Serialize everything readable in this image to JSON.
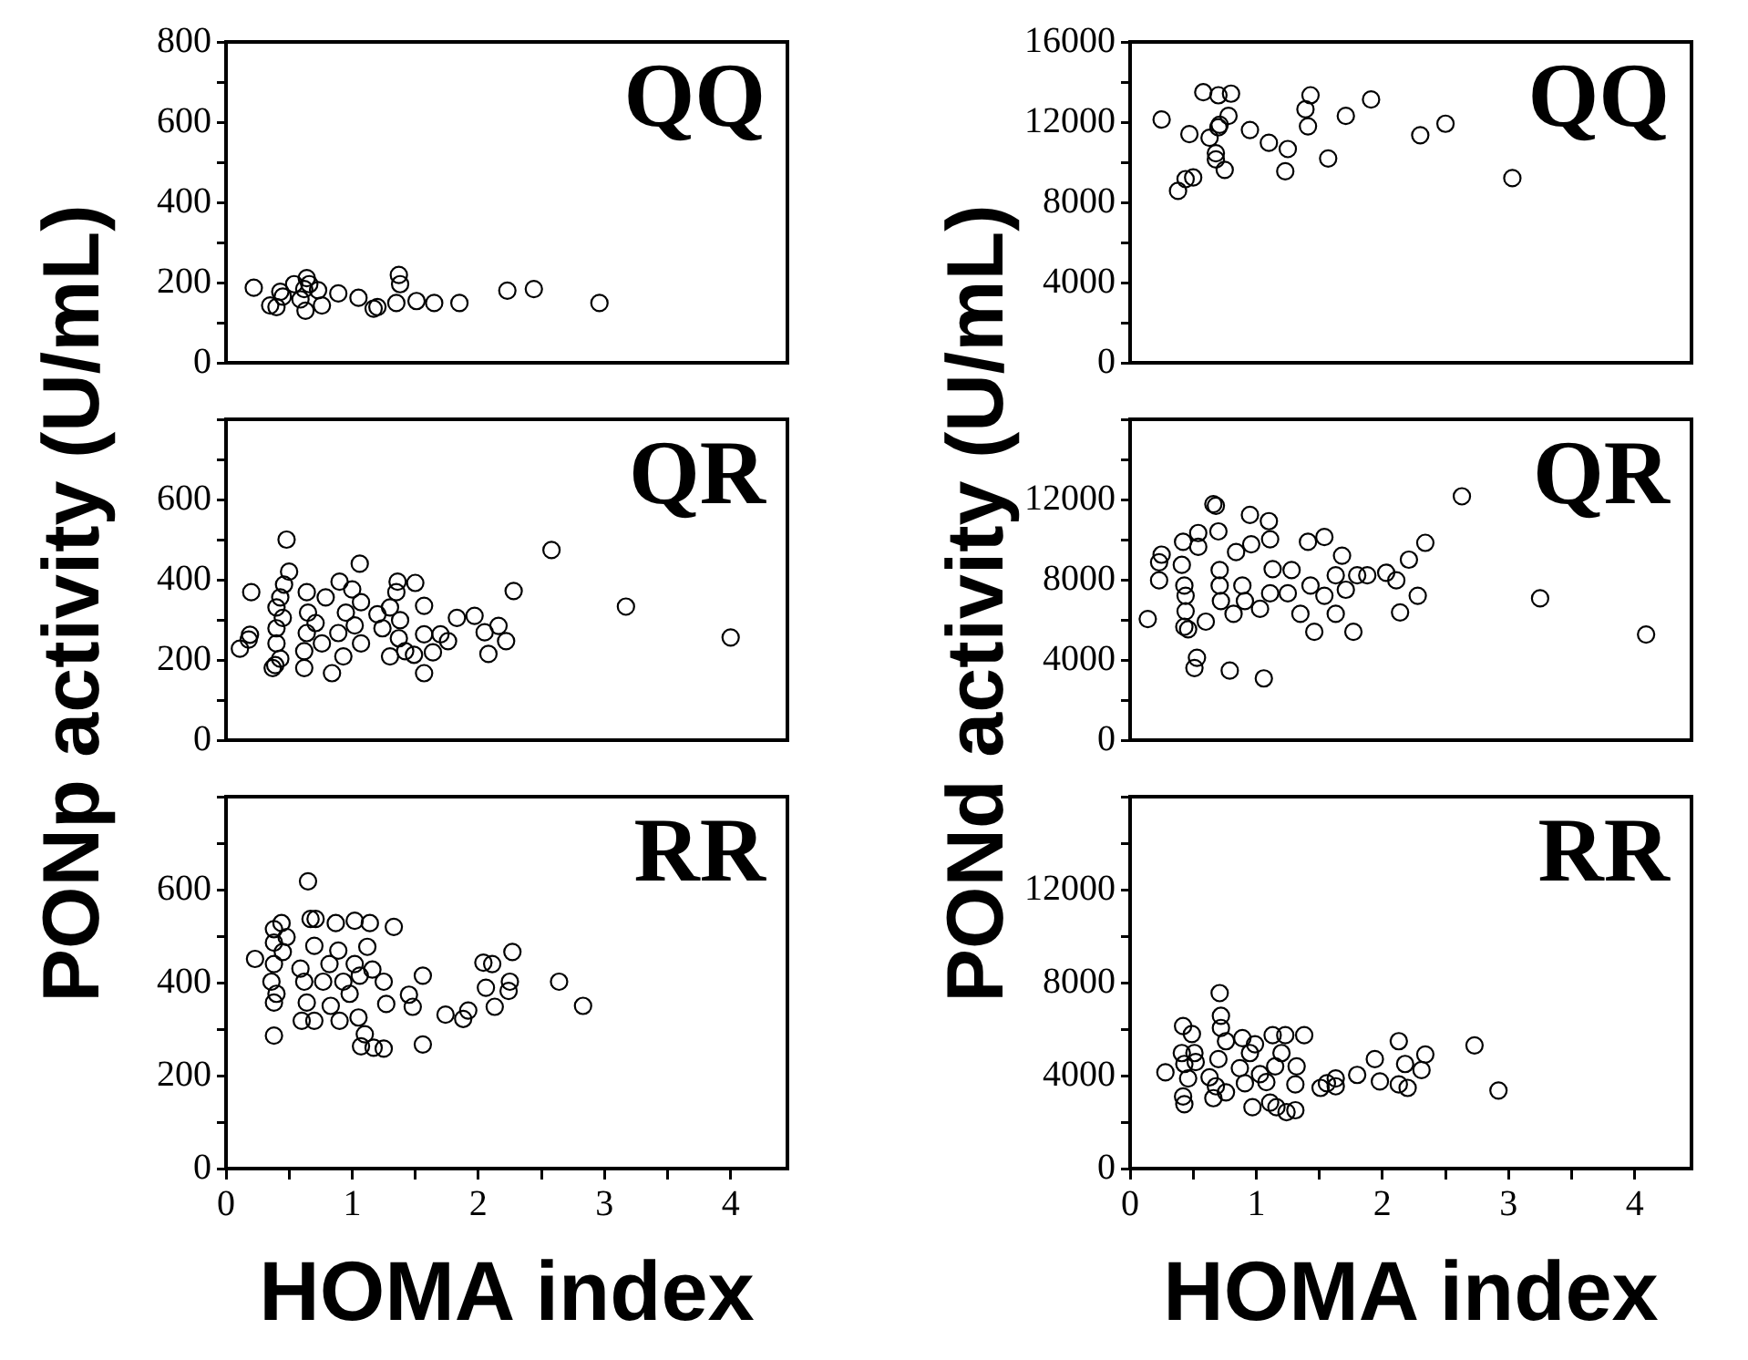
{
  "chart_data": [
    {
      "type": "scatter",
      "color": "#000000",
      "marker": "circle",
      "tick_labels": "y",
      "annotations": [
        "QQ"
      ],
      "xlim": [
        0,
        4.45
      ],
      "ylim": [
        0,
        800
      ],
      "yticks": [
        0,
        {
          "value": 100,
          "label": null
        },
        200,
        {
          "value": 300,
          "label": null
        },
        400,
        {
          "value": 500,
          "label": null
        },
        600,
        {
          "value": 700,
          "label": null
        },
        800
      ],
      "x": [
        0.22,
        0.35,
        0.4,
        0.43,
        0.45,
        0.54,
        0.59,
        0.62,
        0.64,
        0.66,
        0.63,
        0.73,
        0.76,
        0.89,
        1.05,
        1.17,
        1.2,
        1.35,
        1.37,
        1.38,
        1.51,
        1.65,
        1.85,
        2.23,
        2.44,
        2.96
      ],
      "values": [
        187,
        143,
        139,
        177,
        165,
        196,
        158,
        184,
        211,
        196,
        130,
        181,
        143,
        173,
        162,
        135,
        139,
        149,
        219,
        196,
        154,
        149,
        149,
        180,
        184,
        149
      ]
    },
    {
      "type": "scatter",
      "color": "#000000",
      "marker": "circle",
      "tick_labels": "y",
      "annotations": [
        "QQ"
      ],
      "xlim": [
        0,
        4.45
      ],
      "ylim": [
        0,
        16000
      ],
      "yticks": [
        0,
        {
          "value": 2000,
          "label": null
        },
        4000,
        {
          "value": 6000,
          "label": null
        },
        8000,
        {
          "value": 10000,
          "label": null
        },
        12000,
        {
          "value": 14000,
          "label": null
        },
        16000
      ],
      "x": [
        0.25,
        0.38,
        0.44,
        0.5,
        0.47,
        0.58,
        0.63,
        0.68,
        0.68,
        0.7,
        0.71,
        0.7,
        0.78,
        0.8,
        0.75,
        0.95,
        1.1,
        1.23,
        1.25,
        1.39,
        1.43,
        1.41,
        1.57,
        1.71,
        1.91,
        2.3,
        2.5,
        3.03
      ],
      "values": [
        12130,
        8570,
        9160,
        9240,
        11400,
        13490,
        11220,
        10450,
        10140,
        11740,
        11870,
        13340,
        12310,
        13420,
        9620,
        11610,
        10970,
        9550,
        10660,
        12640,
        13340,
        11790,
        10190,
        12310,
        13130,
        11350,
        11920,
        9210
      ]
    },
    {
      "type": "scatter",
      "color": "#000000",
      "marker": "circle",
      "tick_labels": "y",
      "annotations": [
        "QR"
      ],
      "ylabel": "PONp activity (U/mL)",
      "xlim": [
        0,
        4.45
      ],
      "ylim": [
        0,
        800
      ],
      "yticks": [
        0,
        {
          "value": 100,
          "label": null
        },
        200,
        {
          "value": 300,
          "label": null
        },
        400,
        {
          "value": 500,
          "label": null
        },
        600,
        {
          "value": 700,
          "label": null
        },
        {
          "value": 800,
          "label": null
        }
      ],
      "x": [
        0.11,
        0.19,
        0.18,
        0.2,
        0.37,
        0.39,
        0.43,
        0.4,
        0.4,
        0.4,
        0.43,
        0.46,
        0.5,
        0.48,
        0.45,
        0.62,
        0.62,
        0.64,
        0.65,
        0.64,
        0.71,
        0.76,
        0.79,
        0.84,
        0.89,
        0.9,
        0.93,
        0.95,
        1.0,
        1.02,
        1.06,
        1.07,
        1.07,
        1.2,
        1.24,
        1.3,
        1.3,
        1.35,
        1.36,
        1.37,
        1.38,
        1.42,
        1.49,
        1.5,
        1.57,
        1.57,
        1.57,
        1.64,
        1.7,
        1.76,
        1.83,
        1.97,
        2.05,
        2.08,
        2.16,
        2.22,
        2.28,
        2.58,
        3.17,
        4.0
      ],
      "values": [
        228,
        263,
        251,
        369,
        180,
        187,
        203,
        241,
        279,
        331,
        356,
        388,
        420,
        500,
        305,
        180,
        222,
        267,
        318,
        369,
        292,
        241,
        356,
        167,
        267,
        395,
        209,
        318,
        376,
        286,
        440,
        344,
        241,
        314,
        279,
        331,
        209,
        369,
        395,
        254,
        299,
        222,
        213,
        392,
        167,
        335,
        264,
        219,
        264,
        247,
        305,
        310,
        269,
        215,
        285,
        247,
        372,
        474,
        333,
        256
      ]
    },
    {
      "type": "scatter",
      "color": "#000000",
      "marker": "circle",
      "tick_labels": "y",
      "annotations": [
        "QR"
      ],
      "ylabel": "PONd activity (U/mL)",
      "xlim": [
        0,
        4.45
      ],
      "ylim": [
        0,
        16000
      ],
      "yticks": [
        0,
        {
          "value": 2000,
          "label": null
        },
        4000,
        {
          "value": 6000,
          "label": null
        },
        8000,
        {
          "value": 10000,
          "label": null
        },
        12000,
        {
          "value": 14000,
          "label": null
        },
        {
          "value": 16000,
          "label": null
        }
      ],
      "x": [
        0.14,
        0.23,
        0.23,
        0.25,
        0.42,
        0.41,
        0.43,
        0.43,
        0.46,
        0.44,
        0.44,
        0.53,
        0.51,
        0.54,
        0.54,
        0.6,
        0.66,
        0.68,
        0.7,
        0.71,
        0.71,
        0.72,
        0.79,
        0.82,
        0.84,
        0.89,
        0.91,
        0.95,
        0.96,
        1.03,
        1.06,
        1.1,
        1.11,
        1.11,
        1.13,
        1.25,
        1.28,
        1.35,
        1.41,
        1.43,
        1.46,
        1.54,
        1.54,
        1.63,
        1.63,
        1.68,
        1.71,
        1.77,
        1.8,
        1.88,
        2.03,
        2.11,
        2.14,
        2.21,
        2.28,
        2.34,
        2.63,
        3.25,
        4.09
      ],
      "values": [
        6040,
        7970,
        8870,
        9250,
        9890,
        8740,
        7710,
        5650,
        5530,
        6430,
        7200,
        4110,
        3600,
        10330,
        9640,
        5910,
        11770,
        11690,
        10410,
        8480,
        7710,
        6940,
        3470,
        6300,
        9380,
        7710,
        6940,
        11230,
        9770,
        6550,
        3080,
        10920,
        10020,
        7320,
        8530,
        7320,
        8480,
        6300,
        9890,
        7710,
        5400,
        10130,
        7200,
        8220,
        6300,
        9200,
        7500,
        5400,
        8220,
        8220,
        8350,
        7970,
        6370,
        9000,
        7200,
        9840,
        12160,
        7070,
        5270
      ]
    },
    {
      "type": "scatter",
      "color": "#000000",
      "marker": "circle",
      "annotations": [
        "RR"
      ],
      "xlabel": "HOMA index",
      "xlim": [
        0,
        4.45
      ],
      "xticks": [
        0,
        {
          "value": 0.5,
          "label": null
        },
        1,
        {
          "value": 1.5,
          "label": null
        },
        2,
        {
          "value": 2.5,
          "label": null
        },
        3,
        {
          "value": 3.5,
          "label": null
        },
        4
      ],
      "ylim": [
        0,
        800
      ],
      "yticks": [
        0,
        {
          "value": 100,
          "label": null
        },
        200,
        {
          "value": 300,
          "label": null
        },
        400,
        {
          "value": 500,
          "label": null
        },
        600,
        {
          "value": 700,
          "label": null
        },
        {
          "value": 800,
          "label": null
        }
      ],
      "x": [
        0.23,
        0.38,
        0.38,
        0.36,
        0.38,
        0.38,
        0.38,
        0.44,
        0.48,
        0.45,
        0.4,
        0.6,
        0.59,
        0.62,
        0.64,
        0.65,
        0.67,
        0.71,
        0.7,
        0.7,
        0.77,
        0.82,
        0.83,
        0.87,
        0.89,
        0.9,
        0.93,
        0.98,
        1.02,
        1.02,
        1.05,
        1.06,
        1.07,
        1.1,
        1.12,
        1.14,
        1.16,
        1.17,
        1.25,
        1.25,
        1.27,
        1.33,
        1.45,
        1.48,
        1.56,
        1.56,
        1.74,
        1.88,
        1.92,
        2.04,
        2.06,
        2.11,
        2.13,
        2.24,
        2.25,
        2.27,
        2.64,
        2.83
      ],
      "values": [
        451,
        286,
        357,
        402,
        440,
        486,
        515,
        528,
        498,
        466,
        376,
        318,
        430,
        402,
        357,
        618,
        537,
        537,
        479,
        318,
        402,
        440,
        350,
        528,
        469,
        318,
        402,
        376,
        533,
        440,
        325,
        415,
        263,
        289,
        477,
        528,
        428,
        260,
        258,
        402,
        354,
        520,
        374,
        348,
        415,
        267,
        331,
        322,
        340,
        443,
        389,
        440,
        348,
        382,
        402,
        466,
        402,
        350
      ]
    },
    {
      "type": "scatter",
      "color": "#000000",
      "marker": "circle",
      "annotations": [
        "RR"
      ],
      "xlabel": "HOMA index",
      "xlim": [
        0,
        4.45
      ],
      "xticks": [
        0,
        {
          "value": 0.5,
          "label": null
        },
        1,
        {
          "value": 1.5,
          "label": null
        },
        2,
        {
          "value": 2.5,
          "label": null
        },
        3,
        {
          "value": 3.5,
          "label": null
        },
        4
      ],
      "ylim": [
        0,
        16000
      ],
      "yticks": [
        0,
        {
          "value": 2000,
          "label": null
        },
        4000,
        {
          "value": 6000,
          "label": null
        },
        8000,
        {
          "value": 10000,
          "label": null
        },
        12000,
        {
          "value": 14000,
          "label": null
        },
        {
          "value": 16000,
          "label": null
        }
      ],
      "x": [
        0.28,
        0.42,
        0.43,
        0.42,
        0.41,
        0.43,
        0.46,
        0.49,
        0.51,
        0.52,
        0.63,
        0.66,
        0.68,
        0.7,
        0.71,
        0.72,
        0.72,
        0.76,
        0.76,
        0.87,
        0.89,
        0.91,
        0.95,
        0.97,
        0.99,
        1.03,
        1.08,
        1.11,
        1.13,
        1.15,
        1.16,
        1.2,
        1.23,
        1.24,
        1.31,
        1.32,
        1.31,
        1.38,
        1.51,
        1.56,
        1.63,
        1.63,
        1.8,
        1.94,
        1.98,
        2.13,
        2.13,
        2.18,
        2.2,
        2.31,
        2.34,
        2.73,
        2.92
      ],
      "values": [
        4140,
        6130,
        2770,
        3100,
        4970,
        4500,
        3880,
        5790,
        4970,
        4580,
        3930,
        3030,
        3540,
        4710,
        7550,
        6570,
        6050,
        5480,
        3280,
        4320,
        5610,
        3670,
        4970,
        2640,
        5350,
        4060,
        3720,
        2840,
        5740,
        4400,
        2640,
        4970,
        5740,
        2430,
        2510,
        4400,
        3620,
        5740,
        3470,
        3670,
        3880,
        3540,
        4030,
        4710,
        3750,
        5480,
        3620,
        4500,
        3470,
        4240,
        4910,
        5300,
        3360
      ]
    }
  ]
}
